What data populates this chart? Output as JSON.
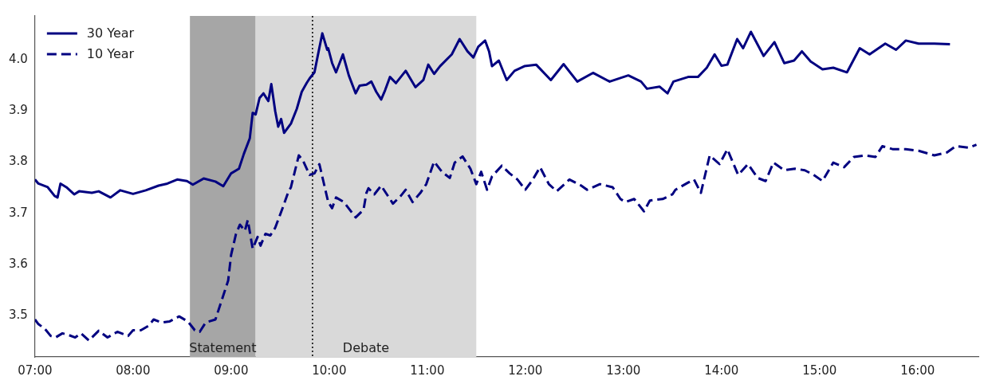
{
  "chart_data": {
    "type": "line",
    "xlim": [
      7,
      16.62
    ],
    "ylim": [
      3.42,
      4.085
    ],
    "xticks": [
      {
        "value": 7,
        "label": "07:00"
      },
      {
        "value": 8,
        "label": "08:00"
      },
      {
        "value": 9,
        "label": "09:00"
      },
      {
        "value": 10,
        "label": "10:00"
      },
      {
        "value": 11,
        "label": "11:00"
      },
      {
        "value": 12,
        "label": "12:00"
      },
      {
        "value": 13,
        "label": "13:00"
      },
      {
        "value": 14,
        "label": "14:00"
      },
      {
        "value": 15,
        "label": "15:00"
      },
      {
        "value": 16,
        "label": "16:00"
      }
    ],
    "yticks": [
      3.5,
      3.6,
      3.7,
      3.8,
      3.9,
      {
        "value": 4,
        "label": "4.0"
      }
    ],
    "grid": false,
    "legend": "top left",
    "marker": "none",
    "bands": [
      {
        "axis": "x",
        "from": 8.58,
        "to": 9.25,
        "label": "Statement",
        "color": "#a6a6a6"
      },
      {
        "axis": "x",
        "from": 9.25,
        "to": 11.5,
        "label": "Debate",
        "color": "#d9d9d9"
      }
    ],
    "ref_lines": [
      {
        "axis": "x",
        "value": 9.83,
        "color": "#000000",
        "line_style": "dotted"
      }
    ],
    "series": [
      {
        "name": "30 Year",
        "color": "#000080",
        "line_style": "solid",
        "x": [
          7.0,
          7.035,
          7.13,
          7.2,
          7.23,
          7.26,
          7.32,
          7.4,
          7.45,
          7.58,
          7.65,
          7.77,
          7.87,
          8.0,
          8.13,
          8.26,
          8.35,
          8.45,
          8.55,
          8.61,
          8.72,
          8.84,
          8.92,
          9.0,
          9.08,
          9.13,
          9.19,
          9.22,
          9.25,
          9.29,
          9.33,
          9.38,
          9.41,
          9.45,
          9.48,
          9.51,
          9.54,
          9.61,
          9.67,
          9.72,
          9.77,
          9.8,
          9.85,
          9.88,
          9.93,
          9.98,
          9.99,
          10.03,
          10.07,
          10.14,
          10.2,
          10.27,
          10.31,
          10.38,
          10.43,
          10.48,
          10.53,
          10.57,
          10.62,
          10.68,
          10.78,
          10.88,
          10.96,
          11.01,
          11.07,
          11.13,
          11.25,
          11.33,
          11.41,
          11.47,
          11.52,
          11.59,
          11.63,
          11.66,
          11.73,
          11.81,
          11.89,
          11.99,
          12.11,
          12.26,
          12.39,
          12.53,
          12.69,
          12.86,
          13.05,
          13.18,
          13.24,
          13.37,
          13.45,
          13.51,
          13.66,
          13.76,
          13.85,
          13.93,
          14.0,
          14.06,
          14.16,
          14.22,
          14.3,
          14.43,
          14.54,
          14.64,
          14.74,
          14.82,
          14.91,
          15.03,
          15.14,
          15.28,
          15.41,
          15.51,
          15.67,
          15.78,
          15.88,
          16.01,
          16.17,
          16.33
        ],
        "values": [
          3.766,
          3.758,
          3.751,
          3.734,
          3.731,
          3.758,
          3.751,
          3.737,
          3.743,
          3.74,
          3.743,
          3.731,
          3.745,
          3.738,
          3.745,
          3.754,
          3.758,
          3.766,
          3.763,
          3.756,
          3.768,
          3.762,
          3.753,
          3.778,
          3.787,
          3.816,
          3.846,
          3.896,
          3.893,
          3.925,
          3.934,
          3.919,
          3.952,
          3.899,
          3.869,
          3.884,
          3.857,
          3.875,
          3.904,
          3.937,
          3.954,
          3.963,
          3.975,
          4.004,
          4.051,
          4.019,
          4.022,
          3.993,
          3.975,
          4.01,
          3.969,
          3.934,
          3.949,
          3.951,
          3.957,
          3.937,
          3.922,
          3.94,
          3.966,
          3.954,
          3.978,
          3.946,
          3.96,
          3.99,
          3.972,
          3.987,
          4.01,
          4.04,
          4.016,
          4.004,
          4.025,
          4.037,
          4.016,
          3.987,
          3.998,
          3.96,
          3.978,
          3.987,
          3.99,
          3.96,
          3.991,
          3.957,
          3.974,
          3.957,
          3.969,
          3.957,
          3.943,
          3.947,
          3.934,
          3.957,
          3.966,
          3.966,
          3.984,
          4.01,
          3.988,
          3.99,
          4.04,
          4.022,
          4.054,
          4.007,
          4.034,
          3.993,
          3.998,
          4.016,
          3.996,
          3.981,
          3.984,
          3.975,
          4.022,
          4.01,
          4.031,
          4.019,
          4.037,
          4.031,
          4.031,
          4.03
        ]
      },
      {
        "name": "10 Year",
        "color": "#000080",
        "line_style": "dashed",
        "x": [
          7.0,
          7.035,
          7.1,
          7.16,
          7.21,
          7.28,
          7.34,
          7.41,
          7.47,
          7.55,
          7.65,
          7.74,
          7.84,
          7.95,
          8.0,
          8.08,
          8.16,
          8.21,
          8.29,
          8.37,
          8.47,
          8.56,
          8.63,
          8.68,
          8.74,
          8.84,
          8.9,
          8.97,
          9.0,
          9.05,
          9.09,
          9.14,
          9.17,
          9.22,
          9.27,
          9.3,
          9.35,
          9.4,
          9.45,
          9.53,
          9.58,
          9.61,
          9.69,
          9.73,
          9.8,
          9.85,
          9.9,
          9.99,
          10.03,
          10.07,
          10.15,
          10.27,
          10.35,
          10.38,
          10.4,
          10.46,
          10.53,
          10.65,
          10.73,
          10.78,
          10.85,
          10.93,
          10.99,
          11.07,
          11.15,
          11.23,
          11.28,
          11.36,
          11.44,
          11.5,
          11.55,
          11.61,
          11.66,
          11.76,
          11.84,
          11.92,
          12.0,
          12.07,
          12.15,
          12.24,
          12.32,
          12.45,
          12.57,
          12.63,
          12.76,
          12.89,
          12.97,
          13.02,
          13.11,
          13.21,
          13.27,
          13.4,
          13.5,
          13.53,
          13.66,
          13.72,
          13.79,
          13.88,
          13.98,
          14.06,
          14.17,
          14.27,
          14.37,
          14.45,
          14.53,
          14.64,
          14.75,
          14.85,
          14.94,
          15.03,
          15.14,
          15.25,
          15.35,
          15.46,
          15.57,
          15.64,
          15.75,
          15.88,
          16.01,
          16.17,
          16.3,
          16.39,
          16.52,
          16.6
        ],
        "values": [
          3.493,
          3.484,
          3.475,
          3.461,
          3.458,
          3.466,
          3.463,
          3.458,
          3.466,
          3.452,
          3.471,
          3.458,
          3.469,
          3.461,
          3.472,
          3.472,
          3.481,
          3.493,
          3.487,
          3.489,
          3.499,
          3.489,
          3.472,
          3.469,
          3.487,
          3.493,
          3.528,
          3.569,
          3.619,
          3.66,
          3.678,
          3.666,
          3.687,
          3.631,
          3.654,
          3.637,
          3.66,
          3.657,
          3.672,
          3.713,
          3.74,
          3.751,
          3.813,
          3.804,
          3.775,
          3.778,
          3.796,
          3.722,
          3.71,
          3.731,
          3.722,
          3.692,
          3.707,
          3.74,
          3.749,
          3.737,
          3.754,
          3.719,
          3.734,
          3.746,
          3.722,
          3.74,
          3.757,
          3.801,
          3.781,
          3.769,
          3.799,
          3.811,
          3.787,
          3.757,
          3.781,
          3.746,
          3.772,
          3.793,
          3.778,
          3.766,
          3.746,
          3.764,
          3.79,
          3.757,
          3.743,
          3.766,
          3.754,
          3.746,
          3.757,
          3.751,
          3.728,
          3.722,
          3.728,
          3.704,
          3.725,
          3.728,
          3.737,
          3.746,
          3.76,
          3.766,
          3.74,
          3.813,
          3.796,
          3.825,
          3.775,
          3.796,
          3.769,
          3.763,
          3.799,
          3.784,
          3.787,
          3.784,
          3.775,
          3.763,
          3.799,
          3.79,
          3.81,
          3.813,
          3.81,
          3.831,
          3.825,
          3.825,
          3.822,
          3.813,
          3.819,
          3.831,
          3.828,
          3.834
        ]
      }
    ]
  }
}
